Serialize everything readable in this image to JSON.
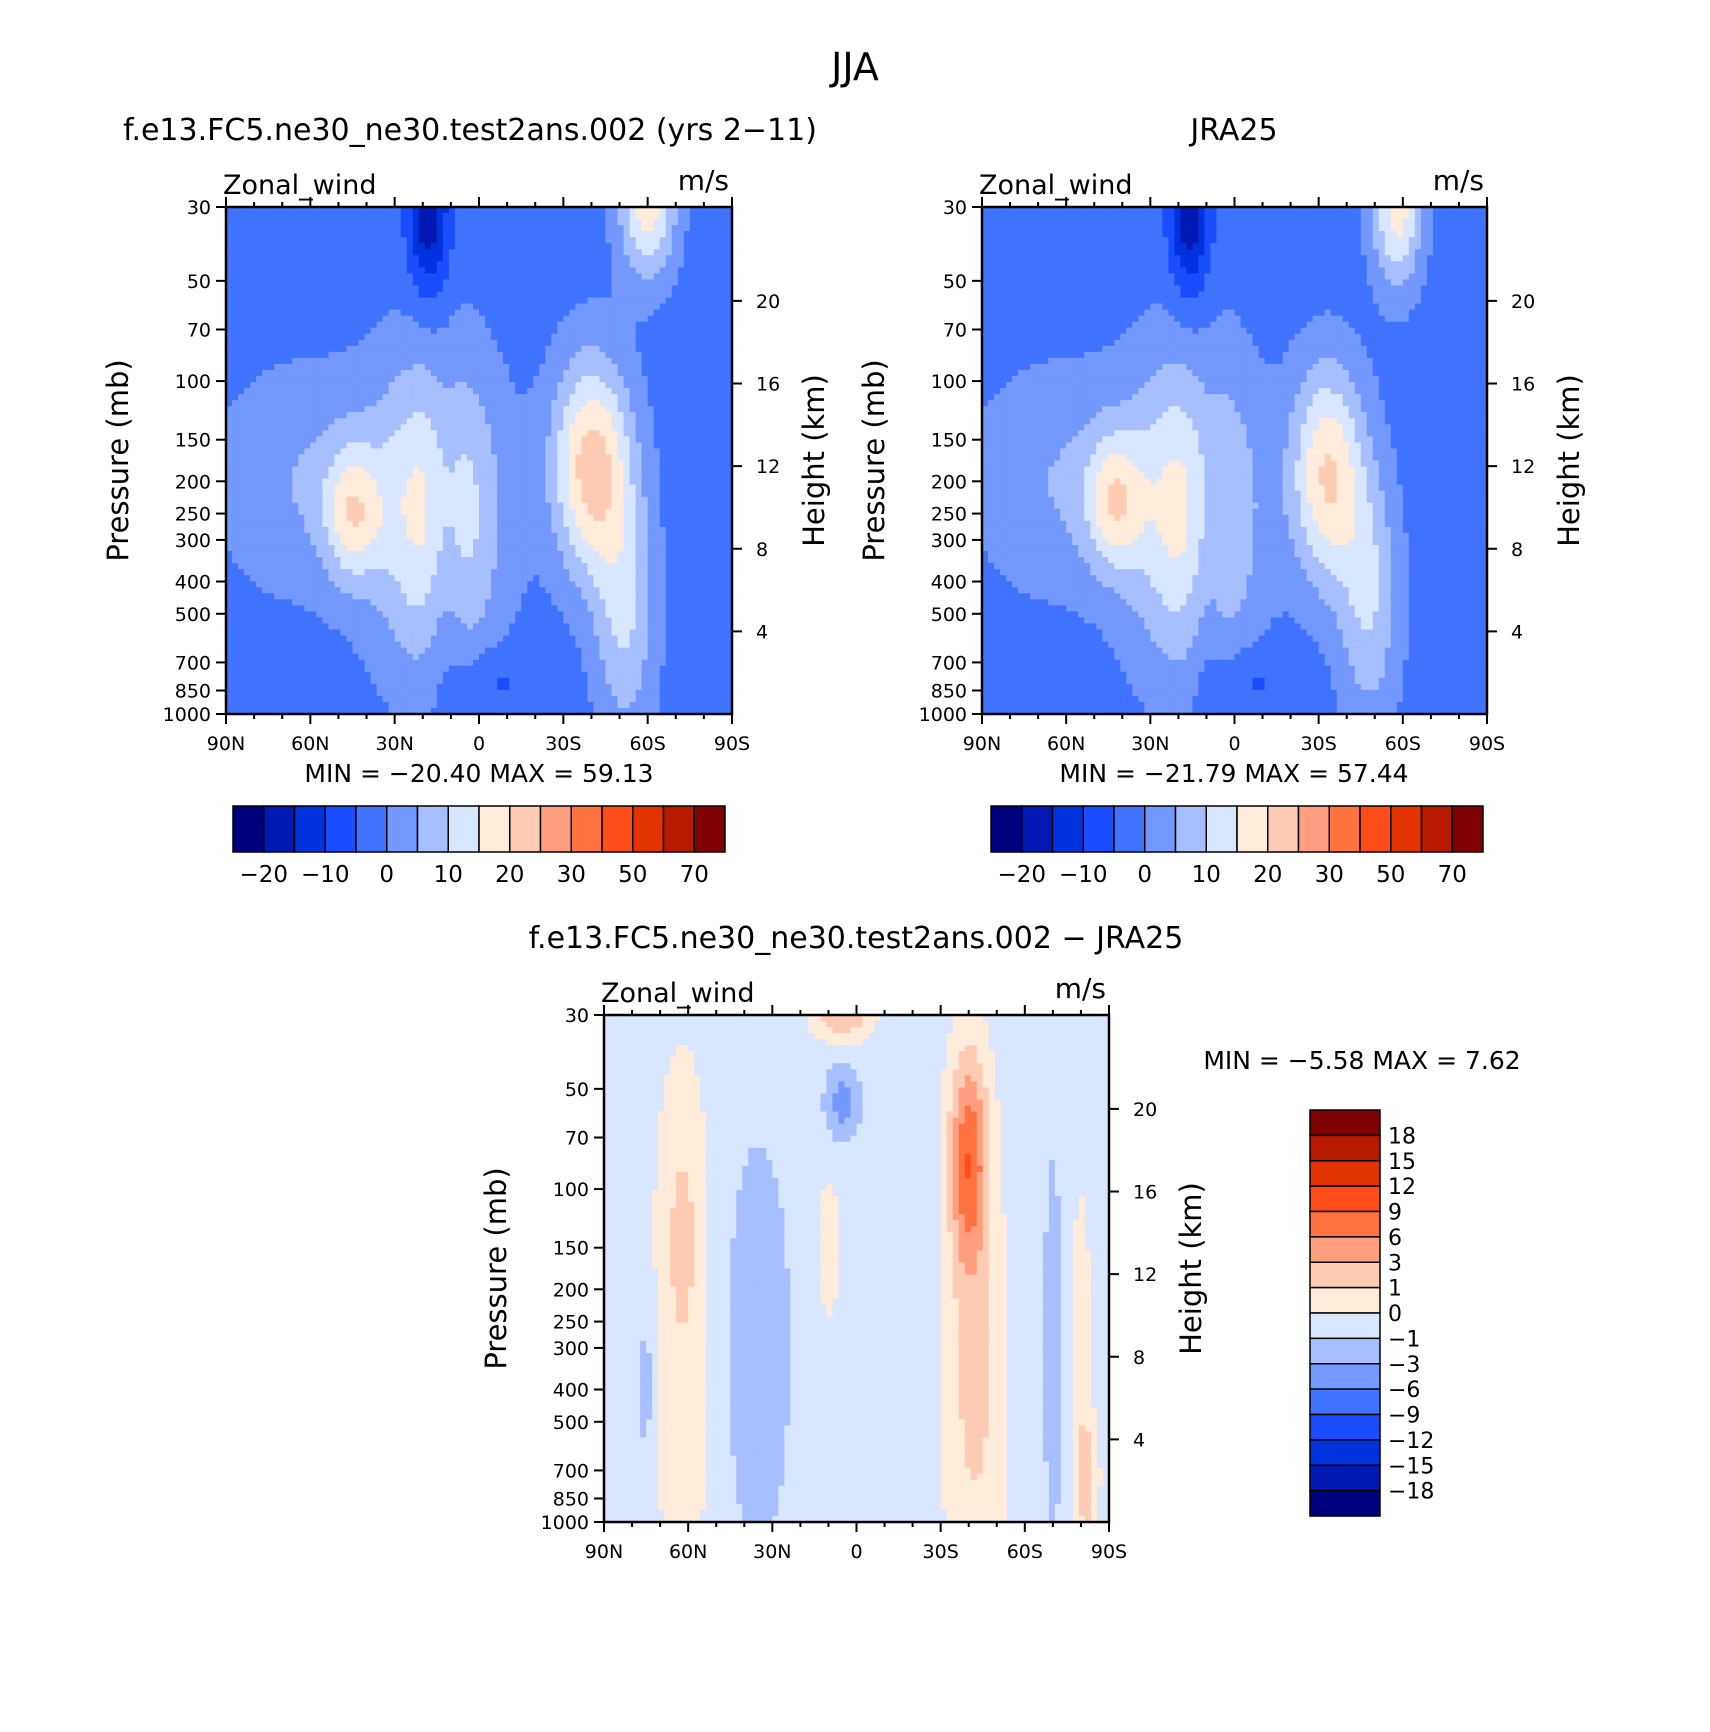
{
  "figure": {
    "title": "JJA"
  },
  "colors": {
    "main": [
      "#00007f",
      "#0019b3",
      "#0033dd",
      "#1a4dff",
      "#4073ff",
      "#7399ff",
      "#a6bfff",
      "#d9e6ff",
      "#ffebd9",
      "#ffccb3",
      "#ff9f7f",
      "#ff7340",
      "#ff4d19",
      "#e23300",
      "#b81a00",
      "#800000"
    ],
    "diff": [
      "#00007f",
      "#0019b3",
      "#0033dd",
      "#1a4dff",
      "#4073ff",
      "#7399ff",
      "#a6bfff",
      "#d9e6ff",
      "#ffebd9",
      "#ffccb3",
      "#ff9f7f",
      "#ff7340",
      "#ff4d19",
      "#e23300",
      "#b81a00",
      "#800000"
    ]
  },
  "chart_data": [
    {
      "type": "heatmap",
      "title": "f.e13.FC5.ne30_ne30.test2ans.002 (yrs 2-11)",
      "variable": "Zonal_wind",
      "units": "m/s",
      "ylabel": "Pressure (mb)",
      "ylabel_right": "Height (km)",
      "ylim": [
        1000,
        30
      ],
      "yscale": "log",
      "xlim": [
        90,
        -90
      ],
      "x_ticks": [
        90,
        60,
        30,
        0,
        -30,
        -60,
        -90
      ],
      "x_tick_labels": [
        "90N",
        "60N",
        "30N",
        "0",
        "30S",
        "60S",
        "90S"
      ],
      "y_ticks": [
        30,
        50,
        70,
        100,
        150,
        200,
        250,
        300,
        400,
        500,
        700,
        850,
        1000
      ],
      "y_tick_labels": [
        "30",
        "50",
        "70",
        "100",
        "150",
        "200",
        "250",
        "300",
        "400",
        "500",
        "700",
        "850",
        "1000"
      ],
      "height_ticks": [
        20,
        16,
        12,
        8,
        4
      ],
      "height_tick_labels": [
        "20",
        "16",
        "12",
        "8",
        "4"
      ],
      "stats": {
        "min_label": "MIN =",
        "min": "-20.40",
        "max_label": "MAX =",
        "max": "59.13"
      },
      "colorbar": {
        "orientation": "horizontal",
        "labels": [
          "-20",
          "-10",
          "0",
          "10",
          "20",
          "30",
          "50",
          "70"
        ]
      },
      "bg_level": 4,
      "blobs": [
        {
          "lat": 15,
          "p": 250,
          "sx": 22,
          "sy": 2.2,
          "a": 4
        },
        {
          "lat": 45,
          "p": 250,
          "sx": 10,
          "sy": 0.9,
          "a": 3
        },
        {
          "lat": 62,
          "p": 200,
          "sx": 32,
          "sy": 1.6,
          "a": 1.5
        },
        {
          "lat": -40,
          "p": 180,
          "sx": 14,
          "sy": 1.5,
          "a": 5
        },
        {
          "lat": -60,
          "p": 30,
          "sx": 10,
          "sy": 1.0,
          "a": 4
        },
        {
          "lat": -52,
          "p": 500,
          "sx": 11,
          "sy": 1.8,
          "a": 2.5
        },
        {
          "lat": 18,
          "p": 30,
          "sx": 7,
          "sy": 1.2,
          "a": -3.5
        },
        {
          "lat": 12,
          "p": 300,
          "sx": 7,
          "sy": 2.2,
          "a": -1.5
        },
        {
          "lat": -5,
          "p": 800,
          "sx": 14,
          "sy": 0.5,
          "a": -1
        }
      ]
    },
    {
      "type": "heatmap",
      "title": "JRA25",
      "variable": "Zonal_wind",
      "units": "m/s",
      "ylabel": "Pressure (mb)",
      "ylabel_right": "Height (km)",
      "ylim": [
        1000,
        30
      ],
      "yscale": "log",
      "xlim": [
        90,
        -90
      ],
      "x_ticks": [
        90,
        60,
        30,
        0,
        -30,
        -60,
        -90
      ],
      "x_tick_labels": [
        "90N",
        "60N",
        "30N",
        "0",
        "30S",
        "60S",
        "90S"
      ],
      "y_ticks": [
        30,
        50,
        70,
        100,
        150,
        200,
        250,
        300,
        400,
        500,
        700,
        850,
        1000
      ],
      "y_tick_labels": [
        "30",
        "50",
        "70",
        "100",
        "150",
        "200",
        "250",
        "300",
        "400",
        "500",
        "700",
        "850",
        "1000"
      ],
      "height_ticks": [
        20,
        16,
        12,
        8,
        4
      ],
      "height_tick_labels": [
        "20",
        "16",
        "12",
        "8",
        "4"
      ],
      "stats": {
        "min_label": "MIN =",
        "min": "-21.79",
        "max_label": "MAX =",
        "max": "57.44"
      },
      "colorbar": {
        "orientation": "horizontal",
        "labels": [
          "-20",
          "-10",
          "0",
          "10",
          "20",
          "30",
          "50",
          "70"
        ]
      },
      "bg_level": 4,
      "blobs": [
        {
          "lat": 15,
          "p": 250,
          "sx": 22,
          "sy": 2.2,
          "a": 4
        },
        {
          "lat": 43,
          "p": 230,
          "sx": 10,
          "sy": 0.9,
          "a": 3
        },
        {
          "lat": 62,
          "p": 200,
          "sx": 32,
          "sy": 1.6,
          "a": 1.5
        },
        {
          "lat": -33,
          "p": 190,
          "sx": 13,
          "sy": 1.5,
          "a": 4.5
        },
        {
          "lat": -58,
          "p": 30,
          "sx": 9,
          "sy": 1.1,
          "a": 4
        },
        {
          "lat": -48,
          "p": 450,
          "sx": 11,
          "sy": 1.8,
          "a": 2.5
        },
        {
          "lat": 16,
          "p": 30,
          "sx": 7,
          "sy": 1.2,
          "a": -3.5
        },
        {
          "lat": 10,
          "p": 300,
          "sx": 7,
          "sy": 2.2,
          "a": -1.5
        },
        {
          "lat": -5,
          "p": 800,
          "sx": 14,
          "sy": 0.5,
          "a": -1
        }
      ]
    },
    {
      "type": "heatmap",
      "title": "f.e13.FC5.ne30_ne30.test2ans.002 - JRA25",
      "variable": "Zonal_wind",
      "units": "m/s",
      "ylabel": "Pressure (mb)",
      "ylabel_right": "Height (km)",
      "ylim": [
        1000,
        30
      ],
      "yscale": "log",
      "xlim": [
        90,
        -90
      ],
      "x_ticks": [
        90,
        60,
        30,
        0,
        -30,
        -60,
        -90
      ],
      "x_tick_labels": [
        "90N",
        "60N",
        "30N",
        "0",
        "30S",
        "60S",
        "90S"
      ],
      "y_ticks": [
        30,
        50,
        70,
        100,
        150,
        200,
        250,
        300,
        400,
        500,
        700,
        850,
        1000
      ],
      "y_tick_labels": [
        "30",
        "50",
        "70",
        "100",
        "150",
        "200",
        "250",
        "300",
        "400",
        "500",
        "700",
        "850",
        "1000"
      ],
      "height_ticks": [
        20,
        16,
        12,
        8,
        4
      ],
      "height_tick_labels": [
        "20",
        "16",
        "12",
        "8",
        "4"
      ],
      "stats": {
        "min_label": "MIN =",
        "min": "-5.58",
        "max_label": "MAX =",
        "max": "7.62"
      },
      "colorbar": {
        "orientation": "vertical",
        "labels": [
          "18",
          "15",
          "12",
          "9",
          "6",
          "3",
          "1",
          "0",
          "-1",
          "-3",
          "-6",
          "-9",
          "-12",
          "-15",
          "-18"
        ]
      },
      "bg_level": 7,
      "blobs": [
        {
          "lat": 62,
          "p": 150,
          "sx": 9,
          "sy": 2.5,
          "a": 1.8
        },
        {
          "lat": 62,
          "p": 700,
          "sx": 10,
          "sy": 1.0,
          "a": 1.0
        },
        {
          "lat": 35,
          "p": 300,
          "sx": 12,
          "sy": 3.0,
          "a": -1.2
        },
        {
          "lat": 5,
          "p": 55,
          "sx": 6,
          "sy": 0.5,
          "a": -2.0
        },
        {
          "lat": 5,
          "p": 30,
          "sx": 10,
          "sy": 0.35,
          "a": 2.5
        },
        {
          "lat": -40,
          "p": 80,
          "sx": 7,
          "sy": 1.5,
          "a": 4.0
        },
        {
          "lat": -42,
          "p": 400,
          "sx": 11,
          "sy": 3.0,
          "a": 1.8
        },
        {
          "lat": -70,
          "p": 300,
          "sx": 3,
          "sy": 2.5,
          "a": -1.5
        },
        {
          "lat": -80,
          "p": 300,
          "sx": 4,
          "sy": 2.5,
          "a": 1.0
        },
        {
          "lat": -82,
          "p": 750,
          "sx": 4,
          "sy": 0.8,
          "a": 2.0
        },
        {
          "lat": 10,
          "p": 150,
          "sx": 4,
          "sy": 1.0,
          "a": 1.2
        },
        {
          "lat": 75,
          "p": 400,
          "sx": 3,
          "sy": 1.2,
          "a": -1.0
        }
      ]
    }
  ]
}
